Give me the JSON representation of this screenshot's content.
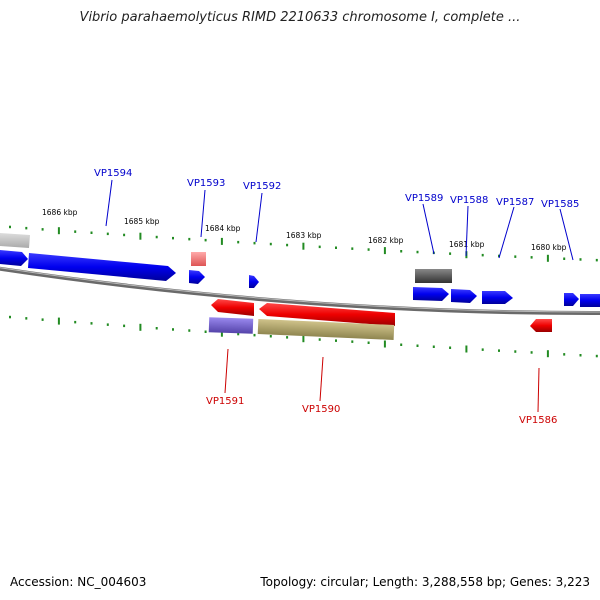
{
  "title": "Vibrio parahaemolyticus RIMD 2210633 chromosome I, complete ...",
  "footer": {
    "accession": "Accession: NC_004603",
    "summary": "Topology: circular; Length: 3,288,558 bp; Genes: 3,223"
  },
  "scale_labels": [
    "1686 kbp",
    "1685 kbp",
    "1684 kbp",
    "1683 kbp",
    "1682 kbp",
    "1681 kbp",
    "1680 kbp"
  ],
  "genes_top": [
    "VP1594",
    "VP1593",
    "VP1592",
    "VP1589",
    "VP1588",
    "VP1587",
    "VP1585"
  ],
  "genes_bottom": [
    "VP1591",
    "VP1590",
    "VP1586"
  ],
  "colors": {
    "forward_strand": "#0000ee",
    "reverse_strand": "#ee0000",
    "backbone": "#888888",
    "tick": "#228b22",
    "pseudo_light_red": "#ee7777",
    "gray_feature": "#555555",
    "light_gray_feature": "#bbbbbb",
    "purple_feature": "#7766cc",
    "olive_feature": "#aaa066"
  }
}
